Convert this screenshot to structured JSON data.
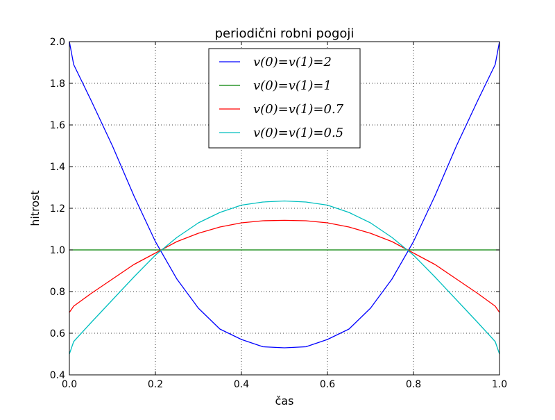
{
  "chart_data": {
    "type": "line",
    "title": "periodični robni pogoji",
    "xlabel": "čas",
    "ylabel": "hitrost",
    "xlim": [
      0.0,
      1.0
    ],
    "ylim": [
      0.4,
      2.0
    ],
    "x_ticks": [
      "0.0",
      "0.2",
      "0.4",
      "0.6",
      "0.8",
      "1.0"
    ],
    "y_ticks": [
      "0.4",
      "0.6",
      "0.8",
      "1.0",
      "1.2",
      "1.4",
      "1.6",
      "1.8",
      "2.0"
    ],
    "grid": true,
    "legend_position": "upper center",
    "x": [
      0.0,
      0.01,
      0.05,
      0.1,
      0.15,
      0.2,
      0.25,
      0.3,
      0.35,
      0.4,
      0.45,
      0.5,
      0.55,
      0.6,
      0.65,
      0.7,
      0.75,
      0.8,
      0.85,
      0.9,
      0.95,
      0.99,
      1.0
    ],
    "series": [
      {
        "name": "v(0)=v(1)=2",
        "color": "#0000ff",
        "values": [
          2.0,
          1.89,
          1.72,
          1.5,
          1.26,
          1.04,
          0.86,
          0.72,
          0.62,
          0.57,
          0.535,
          0.53,
          0.535,
          0.57,
          0.62,
          0.72,
          0.86,
          1.04,
          1.26,
          1.5,
          1.72,
          1.89,
          2.0
        ]
      },
      {
        "name": "v(0)=v(1)=1",
        "color": "#008000",
        "values": [
          1.0,
          1.0,
          1.0,
          1.0,
          1.0,
          1.0,
          1.0,
          1.0,
          1.0,
          1.0,
          1.0,
          1.0,
          1.0,
          1.0,
          1.0,
          1.0,
          1.0,
          1.0,
          1.0,
          1.0,
          1.0,
          1.0,
          1.0
        ]
      },
      {
        "name": "v(0)=v(1)=0.7",
        "color": "#ff0000",
        "values": [
          0.7,
          0.73,
          0.79,
          0.86,
          0.93,
          0.985,
          1.04,
          1.08,
          1.11,
          1.13,
          1.14,
          1.142,
          1.14,
          1.13,
          1.11,
          1.08,
          1.04,
          0.985,
          0.93,
          0.86,
          0.79,
          0.73,
          0.7
        ]
      },
      {
        "name": "v(0)=v(1)=0.5",
        "color": "#00bfbf",
        "values": [
          0.5,
          0.56,
          0.65,
          0.76,
          0.87,
          0.975,
          1.06,
          1.13,
          1.18,
          1.215,
          1.23,
          1.235,
          1.23,
          1.215,
          1.18,
          1.13,
          1.06,
          0.975,
          0.87,
          0.76,
          0.65,
          0.56,
          0.5
        ]
      }
    ]
  }
}
